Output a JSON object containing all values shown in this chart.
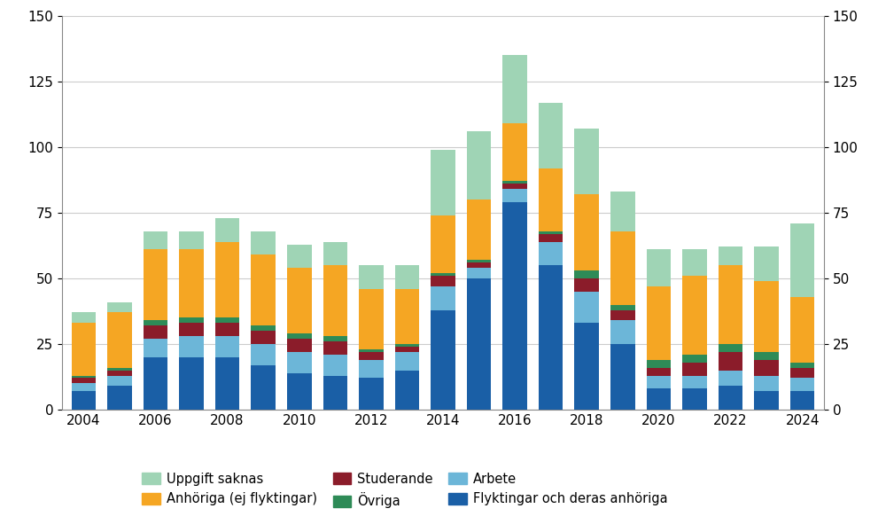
{
  "years": [
    2004,
    2005,
    2006,
    2007,
    2008,
    2009,
    2010,
    2011,
    2012,
    2013,
    2014,
    2015,
    2016,
    2017,
    2018,
    2019,
    2020,
    2021,
    2022,
    2023,
    2024
  ],
  "flyktingar": [
    7,
    9,
    20,
    20,
    20,
    17,
    14,
    13,
    12,
    15,
    38,
    50,
    79,
    55,
    33,
    25,
    8,
    8,
    9,
    7,
    7
  ],
  "arbete": [
    3,
    4,
    7,
    8,
    8,
    8,
    8,
    8,
    7,
    7,
    9,
    4,
    5,
    9,
    12,
    9,
    5,
    5,
    6,
    6,
    5
  ],
  "studerande": [
    2,
    2,
    5,
    5,
    5,
    5,
    5,
    5,
    3,
    2,
    4,
    2,
    2,
    3,
    5,
    4,
    3,
    5,
    7,
    6,
    4
  ],
  "ovriga": [
    1,
    1,
    2,
    2,
    2,
    2,
    2,
    2,
    1,
    1,
    1,
    1,
    1,
    1,
    3,
    2,
    3,
    3,
    3,
    3,
    2
  ],
  "anhoriga": [
    20,
    21,
    27,
    26,
    29,
    27,
    25,
    27,
    23,
    21,
    22,
    23,
    22,
    24,
    29,
    28,
    28,
    30,
    30,
    27,
    25
  ],
  "uppgift_saknas": [
    4,
    4,
    7,
    7,
    9,
    9,
    9,
    9,
    9,
    9,
    25,
    26,
    26,
    25,
    25,
    15,
    14,
    10,
    7,
    13,
    28
  ],
  "colors": {
    "flyktingar": "#1a5fa6",
    "arbete": "#6cb6d8",
    "studerande": "#8b1c2a",
    "ovriga": "#2e8b57",
    "anhoriga": "#f5a623",
    "uppgift_saknas": "#9fd4b5"
  },
  "legend_labels": {
    "uppgift_saknas": "Uppgift saknas",
    "anhoriga": "Anhöriga (ej flyktingar)",
    "studerande": "Studerande",
    "ovriga": "Övriga",
    "arbete": "Arbete",
    "flyktingar": "Flyktingar och deras anhöriga"
  },
  "ylim": [
    0,
    150
  ],
  "yticks": [
    0,
    25,
    50,
    75,
    100,
    125,
    150
  ],
  "background_color": "#ffffff",
  "grid_color": "#cccccc"
}
